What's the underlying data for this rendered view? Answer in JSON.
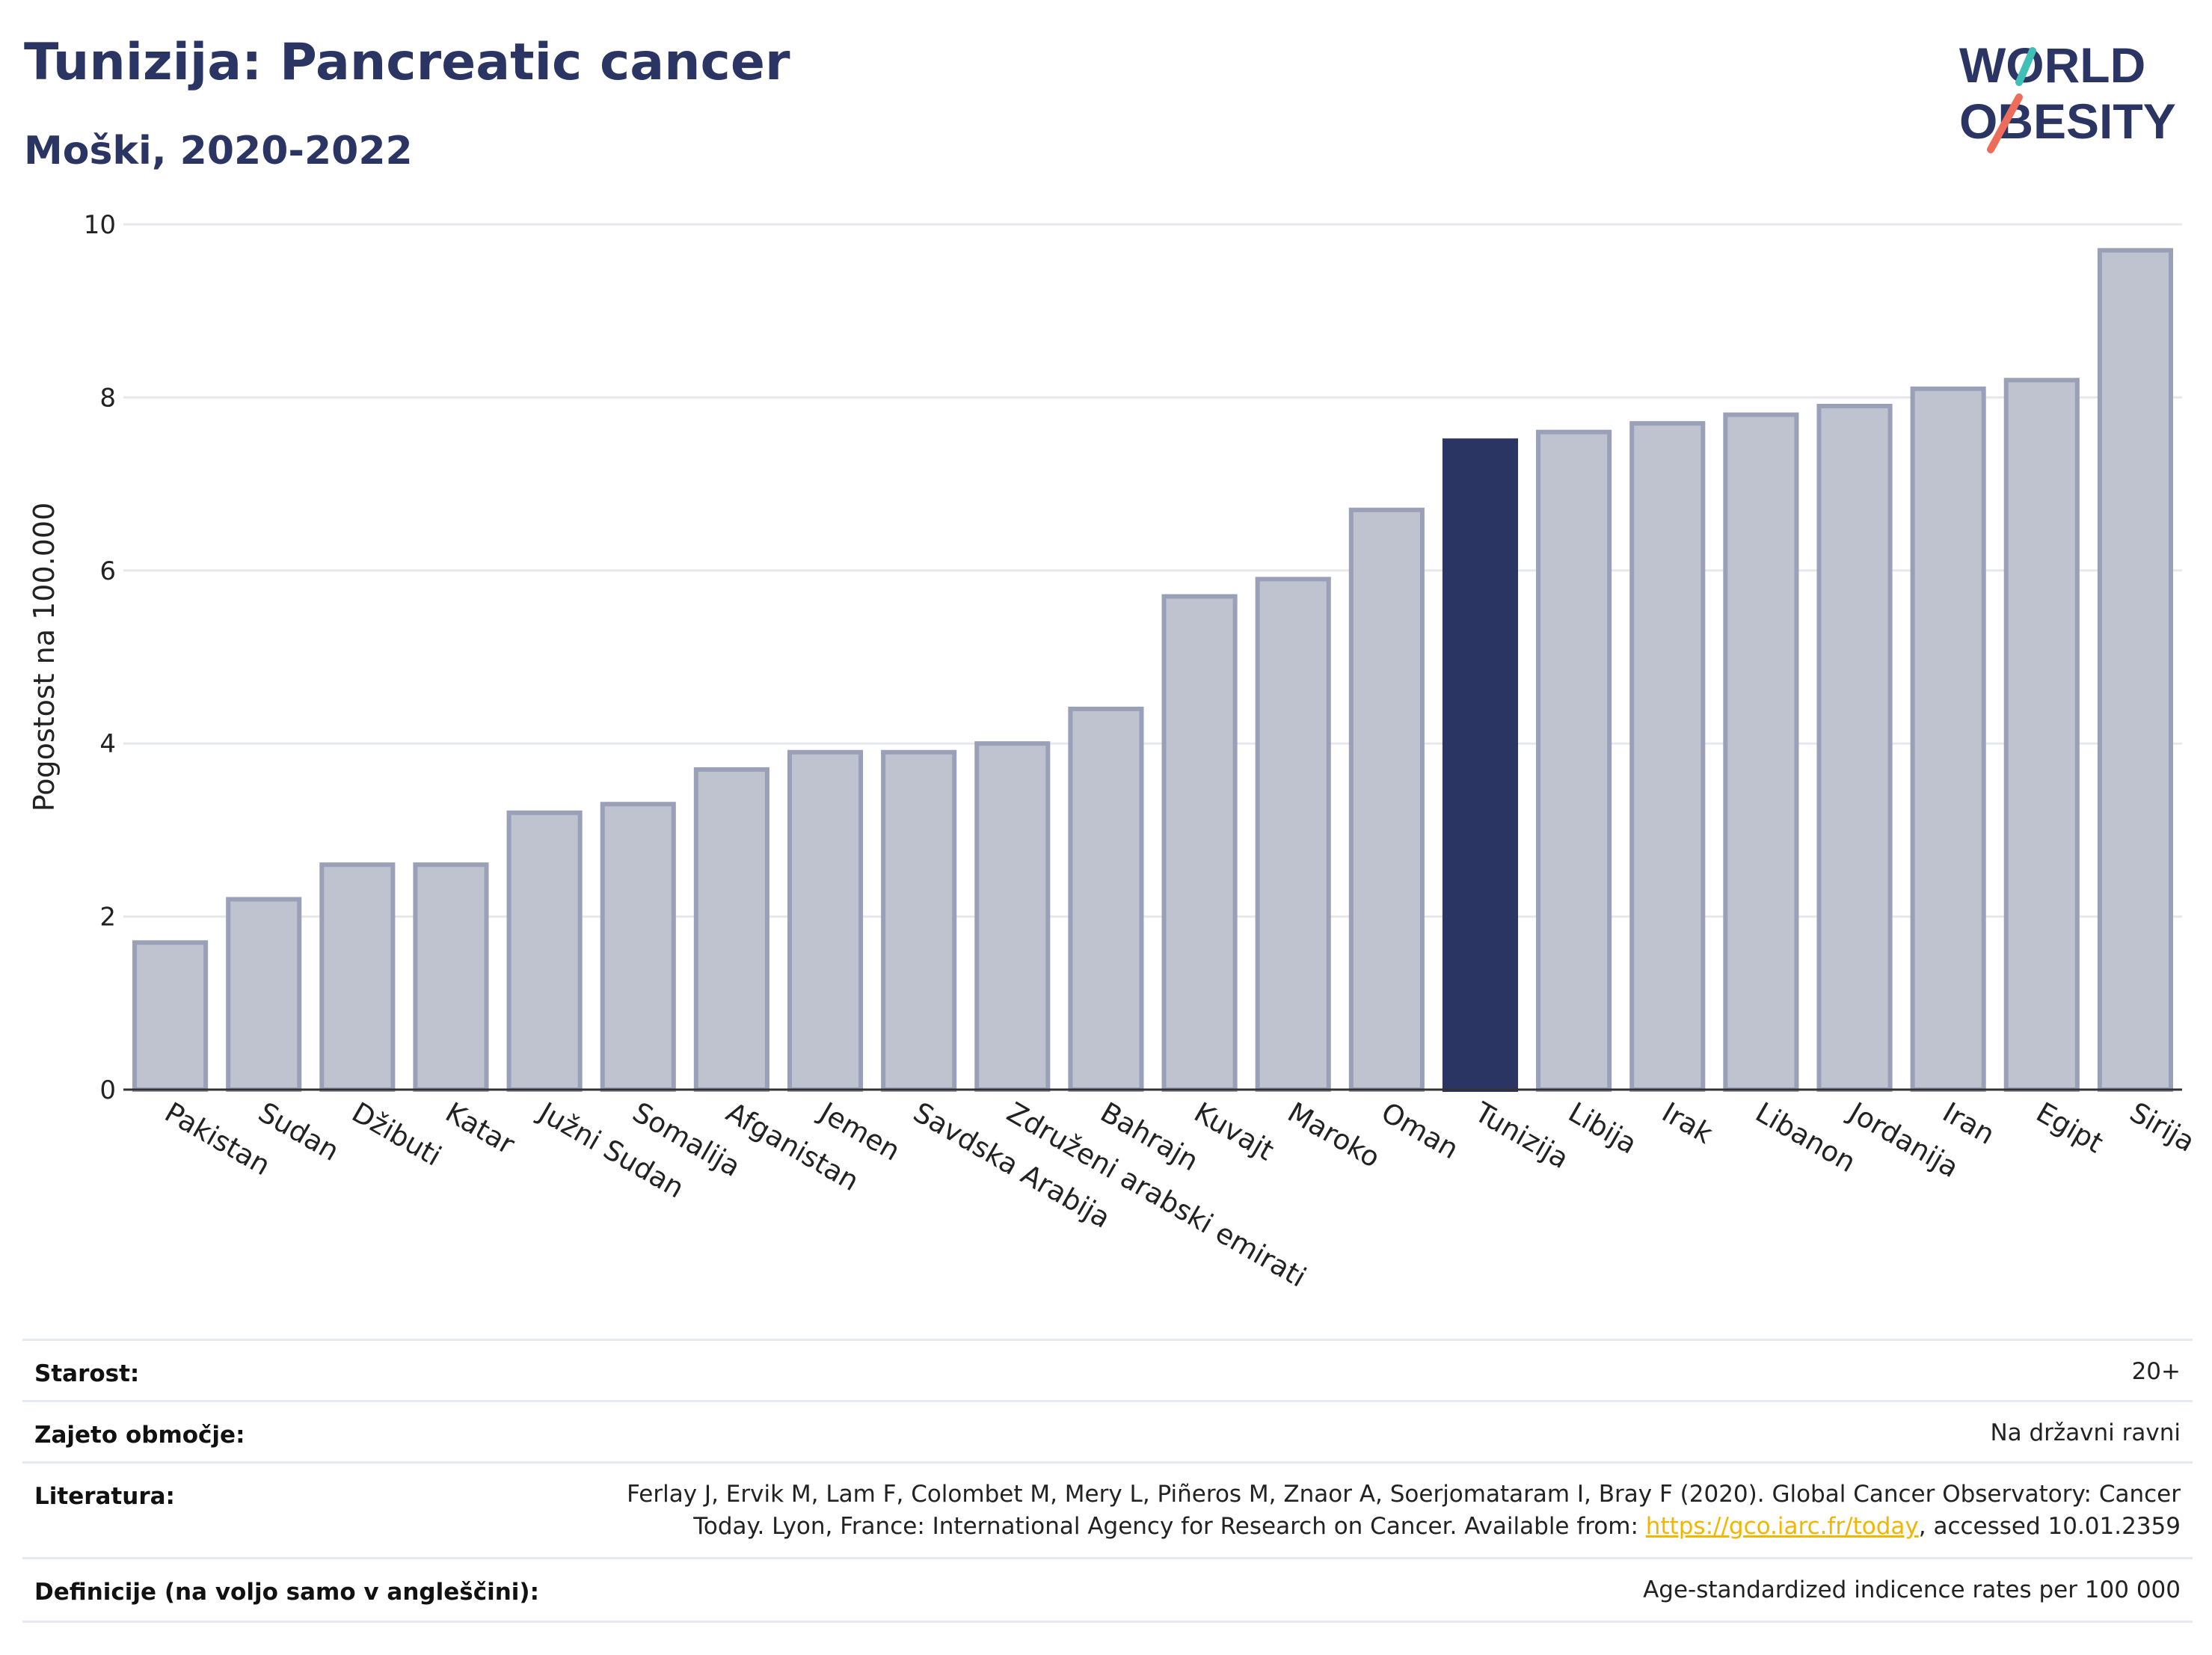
{
  "header": {
    "title": "Tunizija: Pancreatic cancer",
    "subtitle": "Moški, 2020-2022"
  },
  "logo": {
    "line1": "WORLD",
    "line2": "OBESITY"
  },
  "colors": {
    "bar": "#bfc2cf",
    "bar_border": "#9aa0b8",
    "highlight": "#2b3563",
    "text": "#2b3563",
    "grid": "#e6e8ee",
    "logo_teal": "#3fbfb5",
    "logo_coral": "#ee6c5a",
    "link": "#f2b600"
  },
  "chart_data": {
    "type": "bar",
    "ylabel": "Pogostost na 100.000",
    "ylim": [
      0,
      10
    ],
    "yticks": [
      0,
      2,
      4,
      6,
      8,
      10
    ],
    "grid": true,
    "highlight": "Tunizija",
    "categories": [
      "Pakistan",
      "Sudan",
      "Džibuti",
      "Katar",
      "Južni Sudan",
      "Somalija",
      "Afganistan",
      "Jemen",
      "Savdska Arabija",
      "Združeni arabski emirati",
      "Bahrajn",
      "Kuvajt",
      "Maroko",
      "Oman",
      "Tunizija",
      "Libija",
      "Irak",
      "Libanon",
      "Jordanija",
      "Iran",
      "Egipt",
      "Sirija"
    ],
    "values": [
      1.7,
      2.2,
      2.6,
      2.6,
      3.2,
      3.3,
      3.7,
      3.9,
      3.9,
      4.0,
      4.4,
      5.7,
      5.9,
      6.7,
      7.5,
      7.6,
      7.7,
      7.8,
      7.9,
      8.1,
      8.2,
      9.7
    ]
  },
  "footer": {
    "rows": [
      {
        "label": "Starost:",
        "value": "20+"
      },
      {
        "label": "Zajeto območje:",
        "value": "Na državni ravni"
      },
      {
        "label": "Literatura:",
        "value_line1": "Ferlay J, Ervik M, Lam F, Colombet M, Mery L, Piñeros M, Znaor A, Soerjomataram I, Bray F (2020). Global Cancer Observatory: Cancer",
        "value_line2_pre": "Today. Lyon, France: International Agency for Research on Cancer. Available from: ",
        "link": "https://gco.iarc.fr/today",
        "value_line2_post": ", accessed 10.01.2359"
      },
      {
        "label": "Definicije (na voljo samo v angleščini):",
        "value": "Age-standardized indicence rates per 100 000"
      }
    ]
  }
}
